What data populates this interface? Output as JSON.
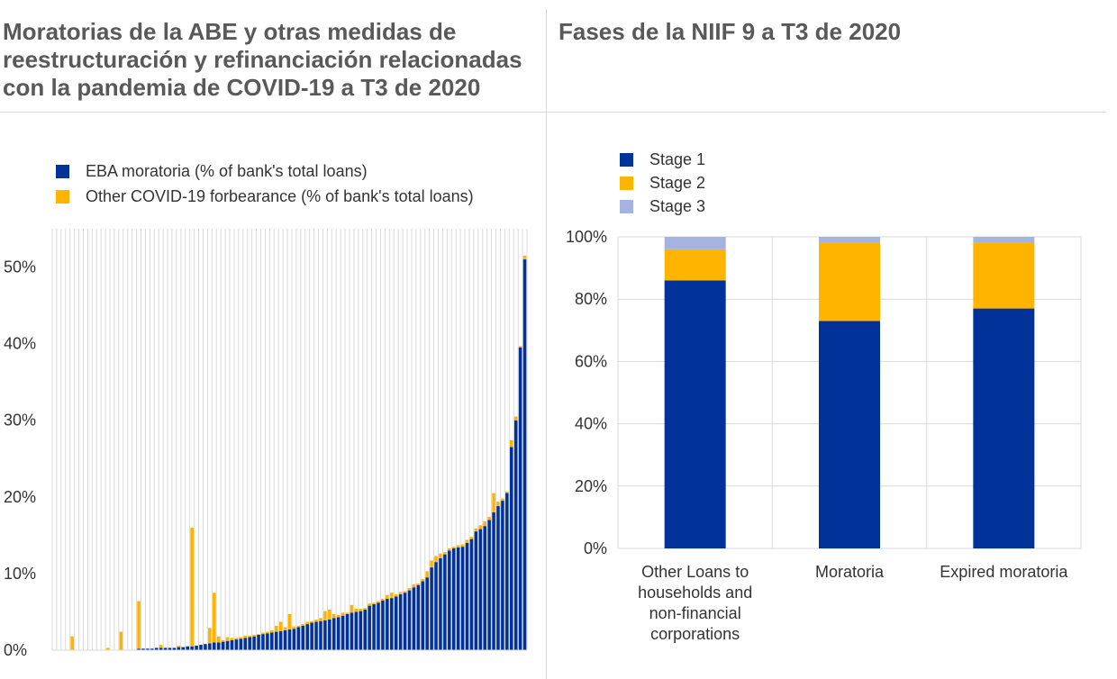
{
  "left_panel": {
    "title": "Moratorias de la ABE y otras medidas de reestructuración y refinanciación relacionadas con la pandemia de COVID-19 a T3 de 2020"
  },
  "right_panel": {
    "title": "Fases de la NIIF 9 a T3 de 2020"
  },
  "colors": {
    "navy": "#003299",
    "yellow": "#ffb400",
    "lightblue": "#a6b3e0",
    "grid": "#d9d9d9"
  },
  "chart_data": [
    {
      "type": "bar",
      "stacked": true,
      "grid": true,
      "legend_position": "top-left",
      "ylim": [
        0,
        55
      ],
      "yticks": [
        "0%",
        "10%",
        "20%",
        "30%",
        "40%",
        "50%"
      ],
      "ytick_values": [
        0,
        10,
        20,
        30,
        40,
        50
      ],
      "series": [
        {
          "name": "EBA moratoria (% of bank's total loans)",
          "color": "#003299",
          "values": [
            0,
            0,
            0,
            0,
            0,
            0,
            0,
            0,
            0,
            0,
            0,
            0,
            0,
            0,
            0,
            0,
            0,
            0,
            0,
            0.2,
            0.2,
            0.2,
            0.2,
            0.3,
            0.3,
            0.3,
            0.3,
            0.3,
            0.4,
            0.4,
            0.5,
            0.5,
            0.6,
            0.7,
            0.8,
            0.9,
            1.0,
            1.0,
            1.1,
            1.2,
            1.3,
            1.4,
            1.5,
            1.6,
            1.7,
            1.8,
            2.0,
            2.1,
            2.2,
            2.3,
            2.4,
            2.5,
            2.6,
            2.7,
            2.8,
            3.0,
            3.2,
            3.4,
            3.6,
            3.7,
            3.8,
            3.9,
            4.0,
            4.2,
            4.3,
            4.5,
            4.7,
            4.9,
            5.0,
            5.1,
            5.3,
            5.8,
            6.0,
            6.2,
            6.5,
            6.7,
            6.8,
            7.0,
            7.3,
            7.5,
            7.8,
            8.2,
            8.5,
            9.0,
            9.5,
            10.8,
            11.5,
            12.0,
            12.5,
            13.0,
            13.3,
            13.4,
            13.5,
            14.0,
            14.5,
            15.5,
            15.8,
            16.2,
            17.0,
            18.0,
            18.8,
            19.5,
            20.5,
            26.5,
            30.0,
            39.5,
            51.0
          ]
        },
        {
          "name": "Other COVID-19 forbearance (% of bank's total loans)",
          "color": "#ffb400",
          "values": [
            0,
            0,
            0,
            0,
            1.8,
            0,
            0,
            0,
            0,
            0,
            0,
            0,
            0.3,
            0,
            0,
            2.4,
            0,
            0,
            0,
            6.2,
            0,
            0,
            0,
            0,
            0.4,
            0,
            0,
            0,
            0.2,
            0,
            0,
            15.5,
            0,
            0,
            0,
            2.0,
            6.5,
            0.8,
            0.2,
            0.5,
            0.3,
            0.2,
            0.2,
            0.3,
            0.2,
            0.2,
            0.1,
            0.2,
            0.2,
            0.3,
            0.8,
            1.2,
            0.4,
            2.0,
            0.3,
            0.2,
            0.2,
            0.3,
            0.2,
            0.3,
            0.4,
            1.2,
            1.3,
            0.5,
            0.3,
            0.4,
            0.2,
            1.0,
            0.4,
            0.3,
            0.2,
            0.3,
            0.2,
            0.2,
            0.2,
            0.5,
            0.7,
            0.3,
            0.3,
            0.2,
            0.3,
            0.4,
            0.2,
            0.3,
            0.8,
            0.9,
            0.8,
            0.6,
            0.3,
            0.3,
            0.2,
            0.3,
            0.3,
            0.4,
            0.3,
            0.4,
            0.5,
            0.6,
            0.4,
            2.5,
            0.6,
            0.3,
            0.2,
            0.9,
            0.5,
            0.2,
            0.5
          ]
        }
      ]
    },
    {
      "type": "bar",
      "stacked": true,
      "grid": true,
      "legend_position": "top-left",
      "ylim": [
        0,
        100
      ],
      "yticks": [
        "0%",
        "20%",
        "40%",
        "60%",
        "80%",
        "100%"
      ],
      "ytick_values": [
        0,
        20,
        40,
        60,
        80,
        100
      ],
      "categories": [
        "Other Loans to households and non-financial corporations",
        "Moratoria",
        "Expired moratoria"
      ],
      "category_lines": [
        [
          "Other Loans to",
          "households and",
          "non-financial",
          "corporations"
        ],
        [
          "Moratoria"
        ],
        [
          "Expired moratoria"
        ]
      ],
      "series": [
        {
          "name": "Stage 1",
          "color": "#003299",
          "values": [
            86,
            73,
            77
          ]
        },
        {
          "name": "Stage 2",
          "color": "#ffb400",
          "values": [
            10,
            25,
            21
          ]
        },
        {
          "name": "Stage 3",
          "color": "#a6b3e0",
          "values": [
            4,
            2,
            2
          ]
        }
      ]
    }
  ]
}
